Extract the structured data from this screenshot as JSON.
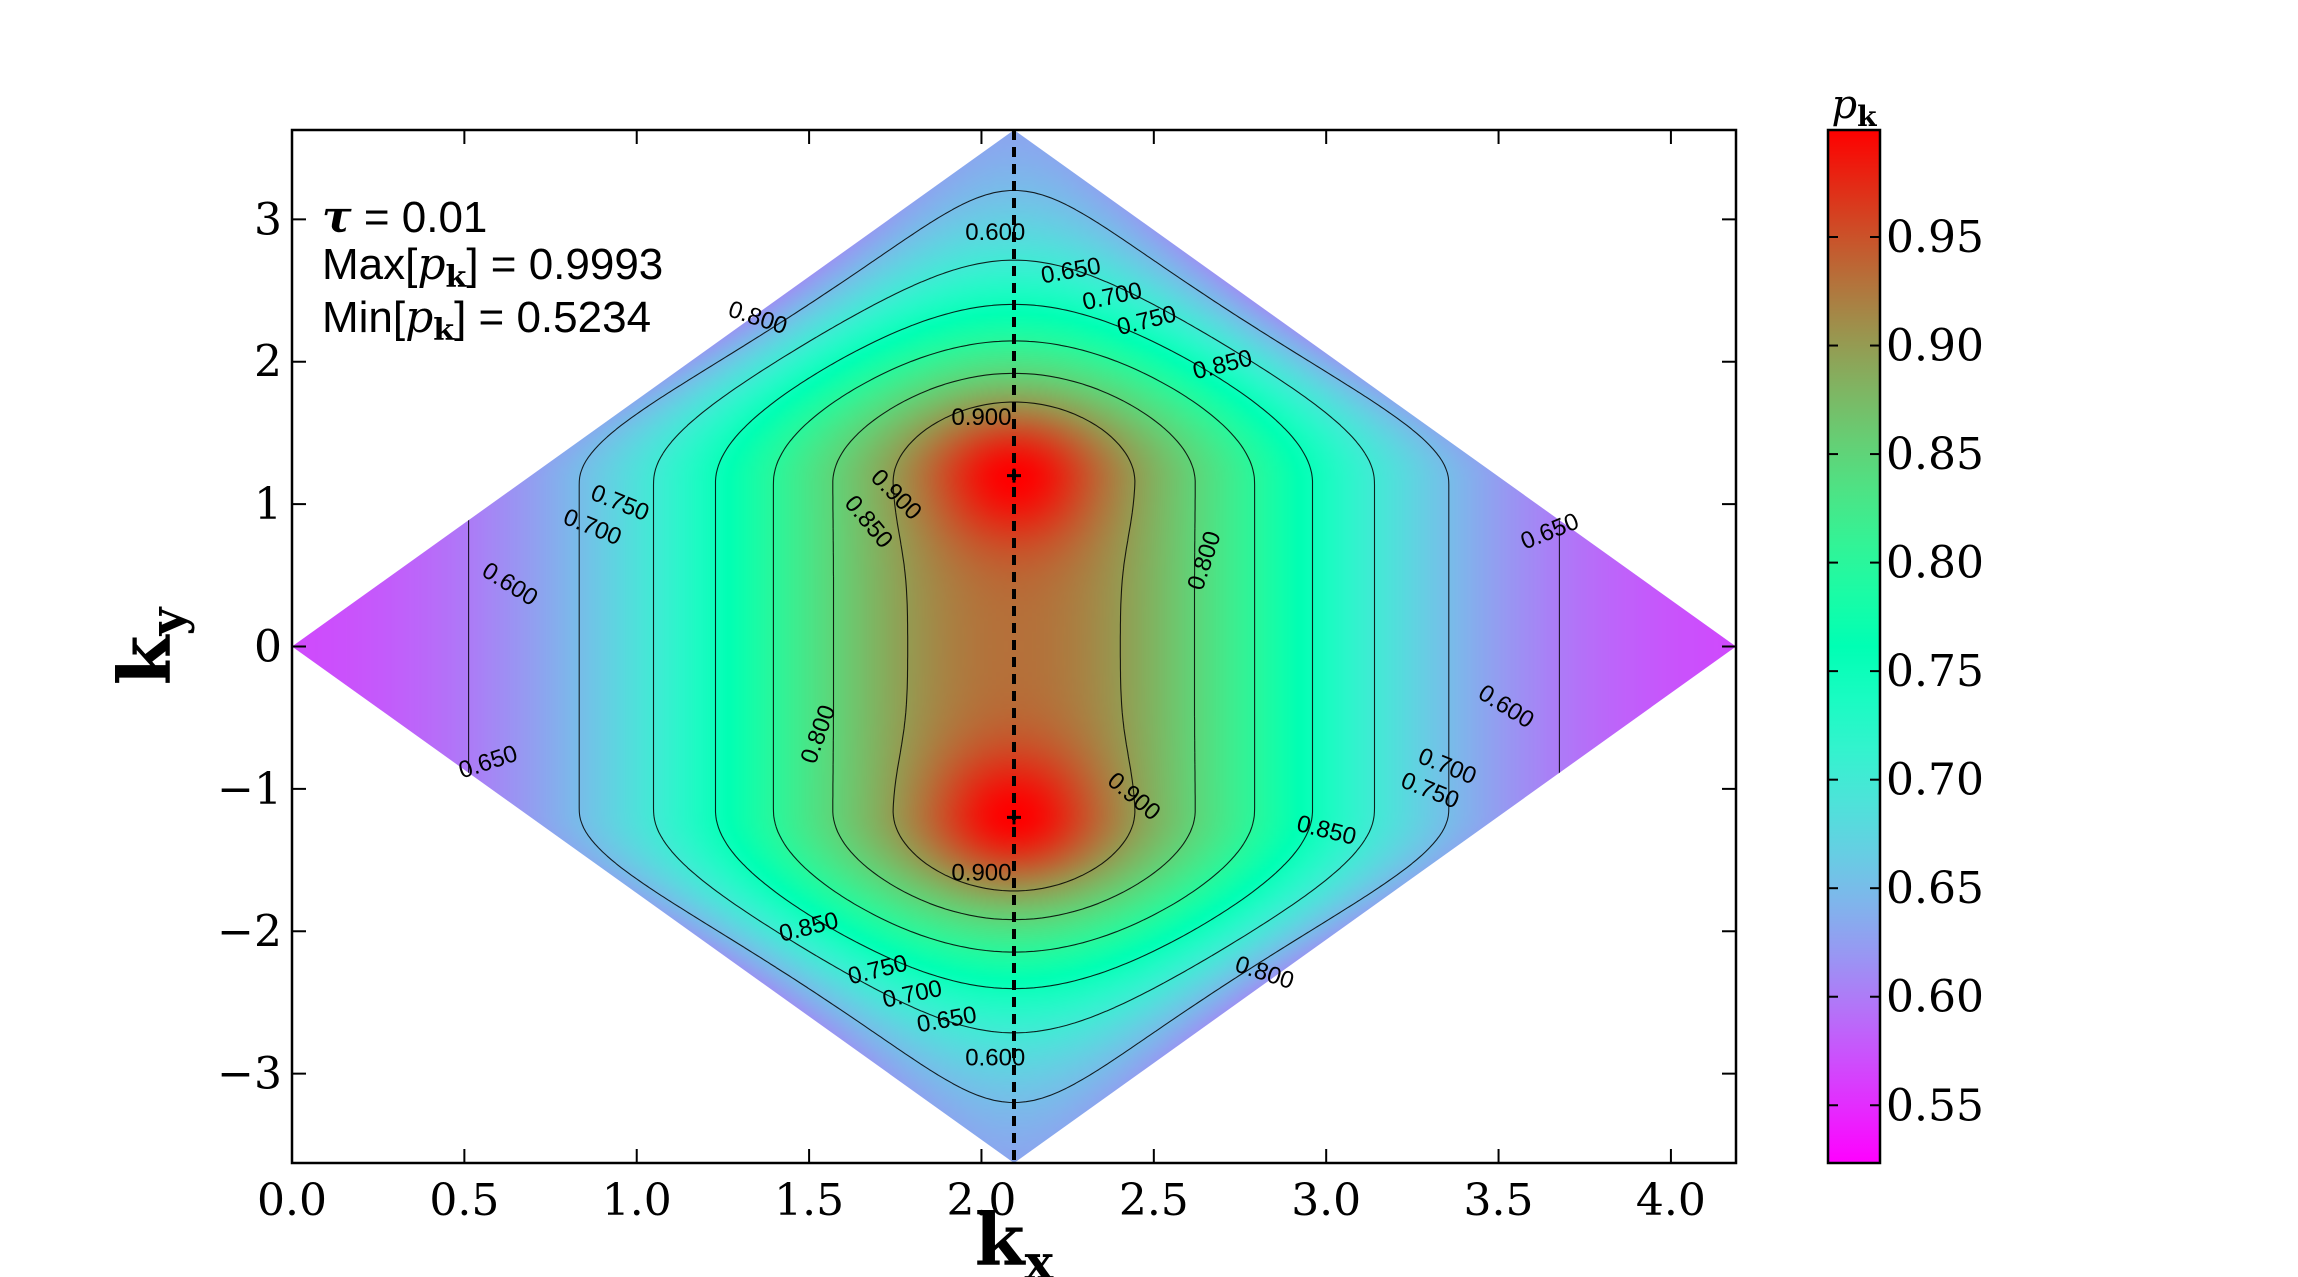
{
  "chart_data": {
    "type": "heatmap",
    "title": "",
    "xlabel": "k",
    "xlabel_sub": "x",
    "ylabel": "k",
    "ylabel_sub": "y",
    "xlim": [
      0.0,
      4.18879
    ],
    "ylim": [
      -3.6276,
      3.6276
    ],
    "x_ticks": [
      0.0,
      0.5,
      1.0,
      1.5,
      2.0,
      2.5,
      3.0,
      3.5,
      4.0
    ],
    "x_tick_labels": [
      "0.0",
      "0.5",
      "1.0",
      "1.5",
      "2.0",
      "2.5",
      "3.0",
      "3.5",
      "4.0"
    ],
    "y_ticks": [
      3,
      2,
      1,
      0,
      -1,
      -2,
      -3
    ],
    "y_tick_labels": [
      "3",
      "2",
      "1",
      "0",
      "−1",
      "−2",
      "−3"
    ],
    "domain": "rhombus with vertices (0,0), (2.0944,3.6276), (4.1888,0), (2.0944,-3.6276)",
    "colormap": "rainbow",
    "colors": {
      "min": "#8000ff",
      "mid": "#80ffb4",
      "max": "#ff0000"
    },
    "dashed_line_x": 2.0944,
    "annotations": {
      "tau": {
        "symbol": "τ",
        "text": " = 0.01"
      },
      "max": {
        "prefix": "Max[",
        "symbol": "p",
        "sub": "k",
        "suffix": "] = 0.9993"
      },
      "min": {
        "prefix": "Min[",
        "symbol": "p",
        "sub": "k",
        "suffix": "]  = 0.5234"
      }
    },
    "value_max": 0.9993,
    "value_min": 0.5234,
    "maxima_points": [
      {
        "x": 2.0944,
        "y": 1.2
      },
      {
        "x": 2.0944,
        "y": -1.2
      }
    ],
    "contour_levels": [
      0.6,
      0.65,
      0.7,
      0.75,
      0.8,
      0.85,
      0.9
    ],
    "contour_labels": [
      {
        "text": "0.600",
        "x": 2.04,
        "y": 2.9,
        "angle": 0
      },
      {
        "text": "0.650",
        "x": 2.26,
        "y": 2.63,
        "angle": -10
      },
      {
        "text": "0.700",
        "x": 2.38,
        "y": 2.45,
        "angle": -12
      },
      {
        "text": "0.750",
        "x": 2.48,
        "y": 2.28,
        "angle": -14
      },
      {
        "text": "0.850",
        "x": 2.7,
        "y": 1.97,
        "angle": -14
      },
      {
        "text": "0.800",
        "x": 1.35,
        "y": 2.3,
        "angle": 18
      },
      {
        "text": "0.900",
        "x": 2.0,
        "y": 1.6,
        "angle": 0
      },
      {
        "text": "0.900",
        "x": 1.75,
        "y": 1.06,
        "angle": 45
      },
      {
        "text": "0.850",
        "x": 1.67,
        "y": 0.87,
        "angle": 50
      },
      {
        "text": "0.750",
        "x": 0.95,
        "y": 1.0,
        "angle": 22
      },
      {
        "text": "0.700",
        "x": 0.87,
        "y": 0.83,
        "angle": 22
      },
      {
        "text": "0.600",
        "x": 0.63,
        "y": 0.43,
        "angle": 32
      },
      {
        "text": "0.800",
        "x": 2.65,
        "y": 0.6,
        "angle": -72
      },
      {
        "text": "0.650",
        "x": 3.65,
        "y": 0.8,
        "angle": -22
      },
      {
        "text": "0.800",
        "x": 1.53,
        "y": -0.62,
        "angle": -70
      },
      {
        "text": "0.650",
        "x": 0.57,
        "y": -0.82,
        "angle": -18
      },
      {
        "text": "0.600",
        "x": 3.52,
        "y": -0.43,
        "angle": 32
      },
      {
        "text": "0.700",
        "x": 3.35,
        "y": -0.85,
        "angle": 22
      },
      {
        "text": "0.750",
        "x": 3.3,
        "y": -1.02,
        "angle": 22
      },
      {
        "text": "0.900",
        "x": 2.44,
        "y": -1.06,
        "angle": 40
      },
      {
        "text": "0.850",
        "x": 3.0,
        "y": -1.3,
        "angle": 14
      },
      {
        "text": "0.900",
        "x": 2.0,
        "y": -1.6,
        "angle": 0
      },
      {
        "text": "0.850",
        "x": 1.5,
        "y": -1.98,
        "angle": -14
      },
      {
        "text": "0.800",
        "x": 2.82,
        "y": -2.3,
        "angle": 18
      },
      {
        "text": "0.750",
        "x": 1.7,
        "y": -2.28,
        "angle": -14
      },
      {
        "text": "0.700",
        "x": 1.8,
        "y": -2.45,
        "angle": -12
      },
      {
        "text": "0.650",
        "x": 1.9,
        "y": -2.63,
        "angle": -10
      },
      {
        "text": "0.600",
        "x": 2.04,
        "y": -2.9,
        "angle": 0
      }
    ],
    "colorbar": {
      "label_symbol": "p",
      "label_sub": "k",
      "range": [
        0.5234,
        0.9993
      ],
      "ticks": [
        0.55,
        0.6,
        0.65,
        0.7,
        0.75,
        0.8,
        0.85,
        0.9,
        0.95
      ],
      "tick_labels": [
        "0.55",
        "0.60",
        "0.65",
        "0.70",
        "0.75",
        "0.80",
        "0.85",
        "0.90",
        "0.95"
      ]
    },
    "grid": false,
    "legend": "none"
  }
}
